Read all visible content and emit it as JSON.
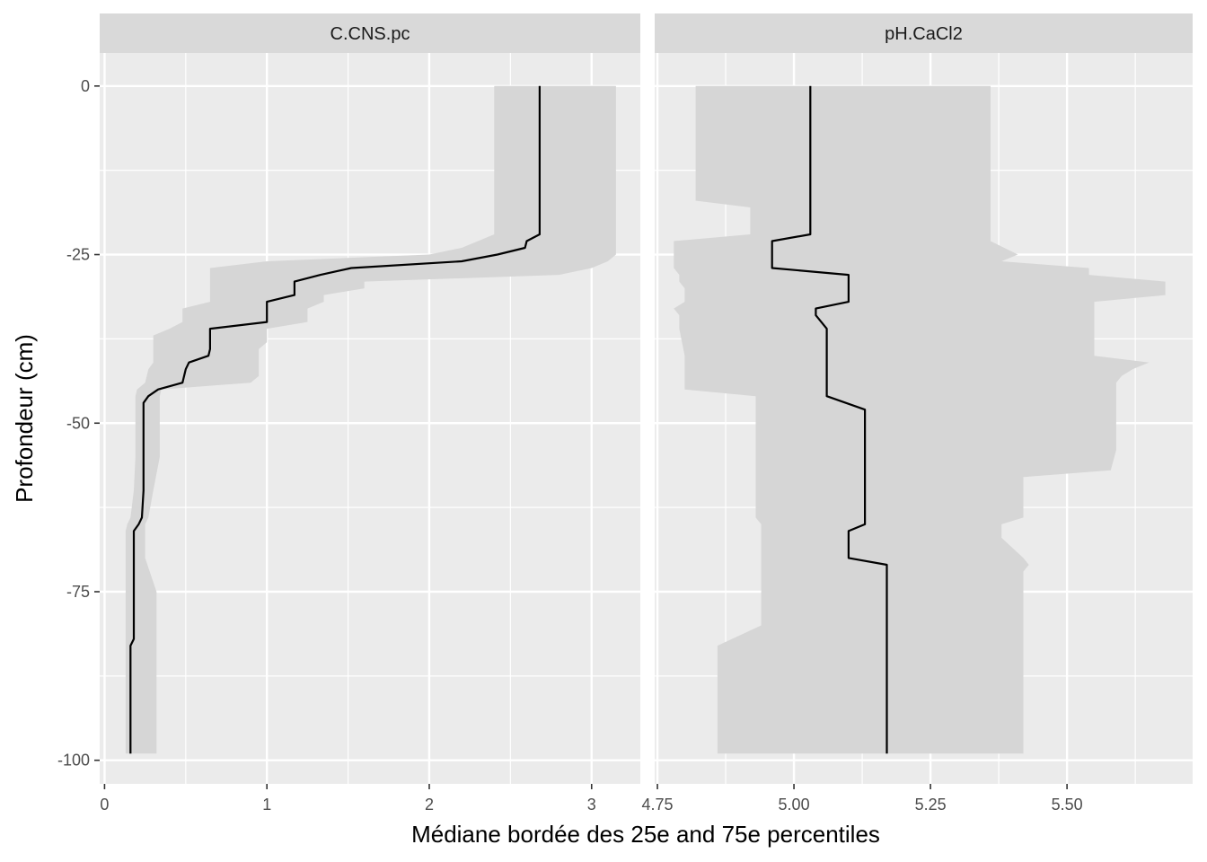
{
  "chart_data": {
    "type": "area",
    "xlabel": "Médiane bordée des 25e and 75e percentiles",
    "ylabel": "Profondeur (cm)",
    "y_ticks": [
      0,
      -25,
      -50,
      -75,
      -100
    ],
    "y_tick_labels": [
      "0",
      "-25",
      "-50",
      "-75",
      "-100"
    ],
    "ylim": [
      -103.5,
      4.9
    ],
    "colors": {
      "panel_bg": "#ebebeb",
      "strip_bg": "#d9d9d9",
      "grid": "#ffffff",
      "ribbon": "#d6d6d6",
      "line": "#000000"
    },
    "panels": [
      {
        "strip": "C.CNS.pc",
        "xlim": [
          -0.03,
          3.3
        ],
        "x_ticks": [
          0,
          1,
          2,
          3
        ],
        "x_tick_labels": [
          "0",
          "1",
          "2",
          "3"
        ],
        "depth": [
          0,
          -22,
          -23,
          -24,
          -25,
          -26,
          -27,
          -28,
          -29,
          -30,
          -31,
          -32,
          -33,
          -34,
          -35,
          -36,
          -37,
          -38,
          -39,
          -40,
          -41,
          -42,
          -43,
          -44,
          -45,
          -46,
          -47,
          -48,
          -50,
          -55,
          -60,
          -64,
          -65,
          -66,
          -67,
          -70,
          -75,
          -80,
          -82,
          -83,
          -85,
          -90,
          -99
        ],
        "median": [
          2.68,
          2.68,
          2.6,
          2.59,
          2.42,
          2.2,
          1.52,
          1.33,
          1.17,
          1.17,
          1.17,
          1.0,
          1.0,
          1.0,
          1.0,
          0.65,
          0.65,
          0.65,
          0.65,
          0.64,
          0.52,
          0.5,
          0.49,
          0.48,
          0.33,
          0.27,
          0.24,
          0.24,
          0.24,
          0.24,
          0.24,
          0.23,
          0.21,
          0.18,
          0.18,
          0.18,
          0.18,
          0.18,
          0.18,
          0.16,
          0.16,
          0.16,
          0.16
        ],
        "p25": [
          2.4,
          2.4,
          2.3,
          2.2,
          2.0,
          1.0,
          0.65,
          0.65,
          0.65,
          0.65,
          0.65,
          0.65,
          0.48,
          0.48,
          0.48,
          0.4,
          0.3,
          0.3,
          0.3,
          0.3,
          0.3,
          0.27,
          0.26,
          0.25,
          0.2,
          0.19,
          0.19,
          0.19,
          0.19,
          0.19,
          0.18,
          0.16,
          0.14,
          0.13,
          0.13,
          0.13,
          0.13,
          0.13,
          0.13,
          0.13,
          0.13,
          0.13,
          0.13
        ],
        "p75": [
          3.15,
          3.15,
          3.15,
          3.15,
          3.15,
          3.1,
          3.0,
          2.8,
          1.6,
          1.6,
          1.35,
          1.35,
          1.25,
          1.25,
          1.25,
          1.0,
          1.0,
          1.0,
          0.95,
          0.95,
          0.95,
          0.95,
          0.95,
          0.9,
          0.35,
          0.34,
          0.34,
          0.34,
          0.34,
          0.34,
          0.3,
          0.27,
          0.25,
          0.25,
          0.25,
          0.25,
          0.32,
          0.32,
          0.32,
          0.32,
          0.32,
          0.32,
          0.32
        ]
      },
      {
        "strip": "pH.CaCl2",
        "xlim": [
          4.745,
          5.73
        ],
        "x_ticks": [
          4.75,
          5.0,
          5.25,
          5.5
        ],
        "x_tick_labels": [
          "4.75",
          "5.00",
          "5.25",
          "5.50"
        ],
        "depth": [
          0,
          -17,
          -18,
          -21,
          -22,
          -23,
          -25,
          -26,
          -27,
          -28,
          -29,
          -30,
          -31,
          -32,
          -33,
          -34,
          -35,
          -36,
          -40,
          -41,
          -42,
          -43,
          -44,
          -45,
          -46,
          -48,
          -50,
          -54,
          -57,
          -58,
          -64,
          -65,
          -66,
          -67,
          -70,
          -71,
          -72,
          -75,
          -80,
          -83,
          -85,
          -90,
          -99
        ],
        "median": [
          5.03,
          5.03,
          5.03,
          5.03,
          5.03,
          4.96,
          4.96,
          4.96,
          4.96,
          5.1,
          5.1,
          5.1,
          5.1,
          5.1,
          5.04,
          5.04,
          5.05,
          5.06,
          5.06,
          5.06,
          5.06,
          5.06,
          5.06,
          5.06,
          5.06,
          5.13,
          5.13,
          5.13,
          5.13,
          5.13,
          5.13,
          5.13,
          5.1,
          5.1,
          5.1,
          5.17,
          5.17,
          5.17,
          5.17,
          5.17,
          5.17,
          5.17,
          5.17
        ],
        "p25": [
          4.82,
          4.82,
          4.92,
          4.92,
          4.92,
          4.78,
          4.78,
          4.78,
          4.78,
          4.79,
          4.79,
          4.8,
          4.8,
          4.8,
          4.78,
          4.79,
          4.79,
          4.79,
          4.8,
          4.8,
          4.8,
          4.8,
          4.8,
          4.8,
          4.93,
          4.93,
          4.93,
          4.93,
          4.93,
          4.93,
          4.93,
          4.94,
          4.94,
          4.94,
          4.94,
          4.94,
          4.94,
          4.94,
          4.94,
          4.86,
          4.86,
          4.86,
          4.86
        ],
        "p75": [
          5.36,
          5.36,
          5.36,
          5.36,
          5.36,
          5.36,
          5.41,
          5.38,
          5.54,
          5.54,
          5.68,
          5.68,
          5.68,
          5.55,
          5.55,
          5.55,
          5.55,
          5.55,
          5.55,
          5.65,
          5.62,
          5.6,
          5.59,
          5.59,
          5.59,
          5.59,
          5.59,
          5.59,
          5.58,
          5.42,
          5.42,
          5.38,
          5.38,
          5.38,
          5.42,
          5.43,
          5.42,
          5.42,
          5.42,
          5.42,
          5.42,
          5.42,
          5.42
        ]
      }
    ]
  }
}
